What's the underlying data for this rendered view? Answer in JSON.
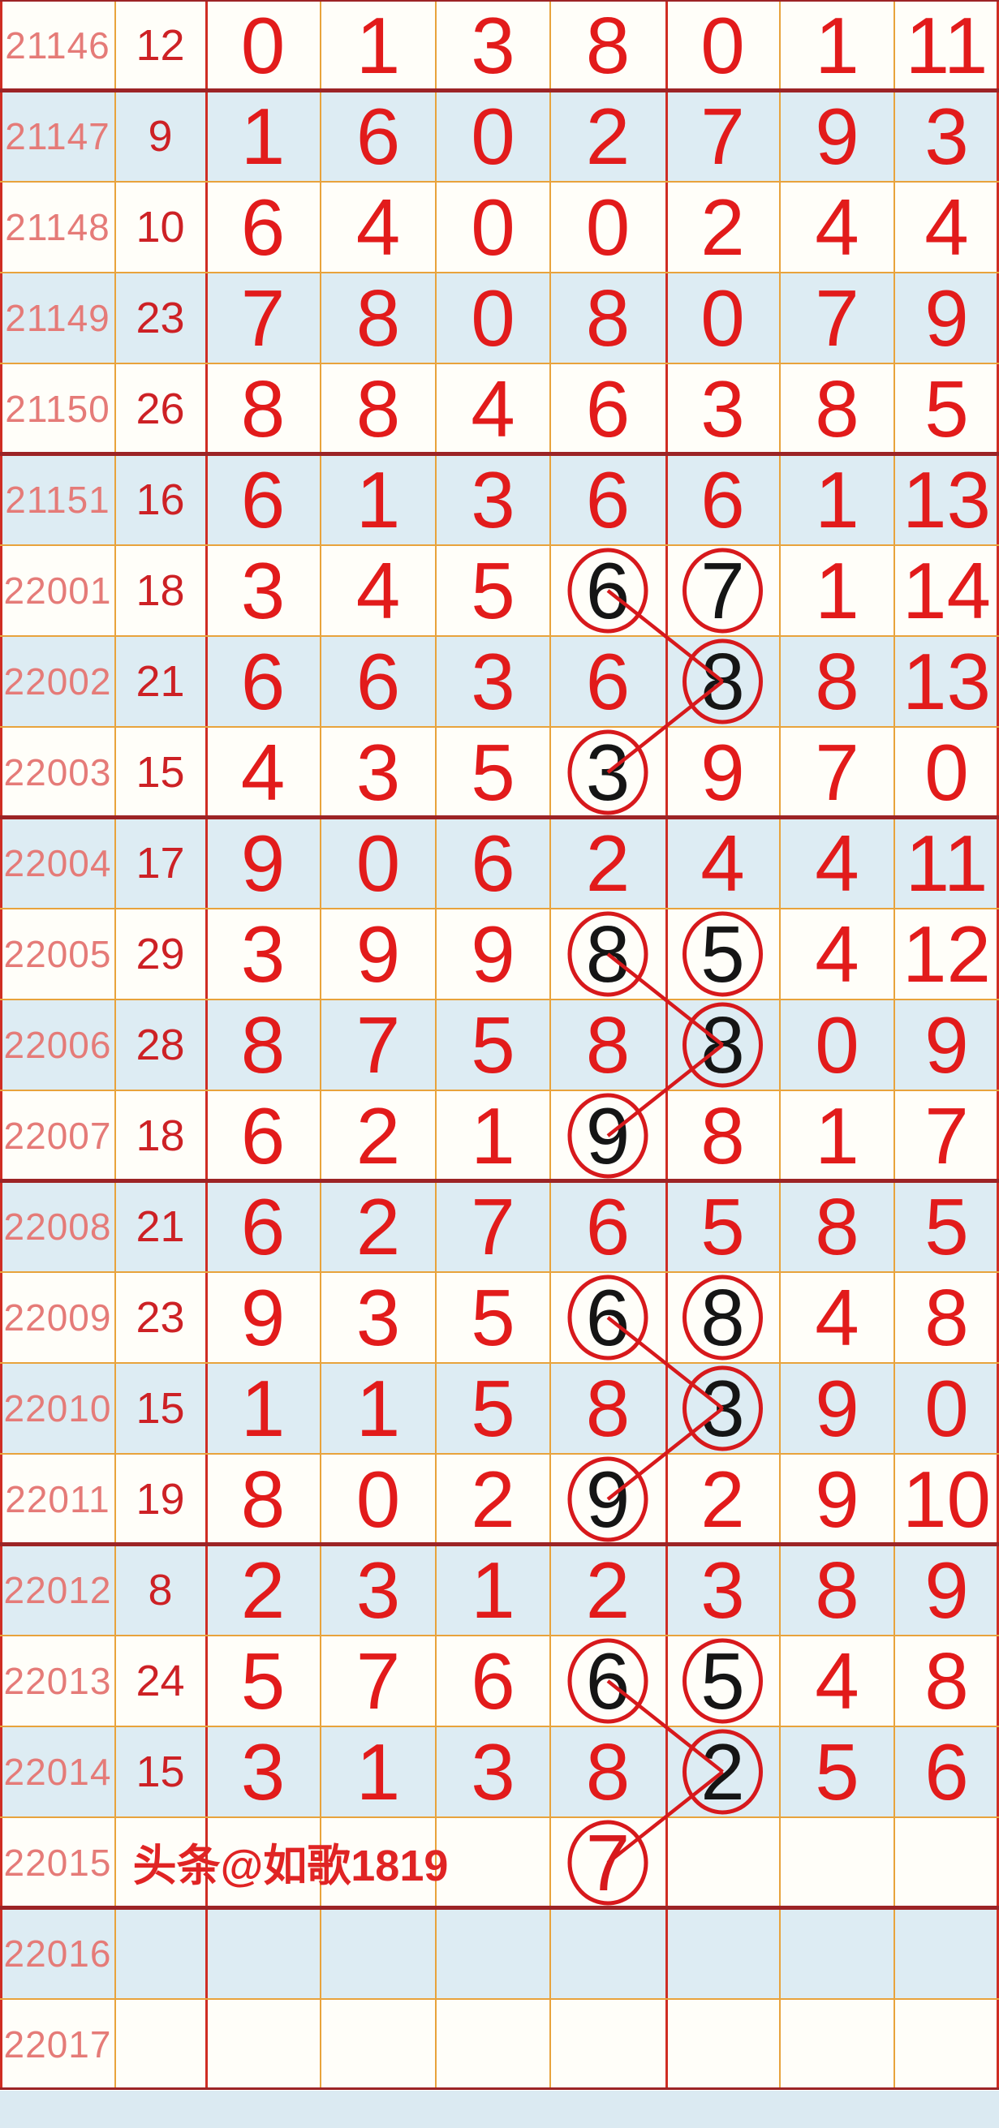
{
  "watermark": "头条@如歌1819",
  "colors": {
    "digit_red": "#e21b1b",
    "period_red": "#e57b78",
    "sum_red": "#cd2125",
    "circled_black": "#151515",
    "circle_stroke": "#d7191c",
    "row_white": "#fffef9",
    "row_blue": "#ddecf3",
    "grid_orange": "#e8a33c",
    "grid_red": "#cf2d23",
    "group_line": "#9c2426",
    "bottom_strip": "#dbeaf2",
    "watermark_red": "#e02424"
  },
  "chart_data": {
    "type": "table",
    "description": "Lottery number trend table: period column, sum column, then 7 digit columns; selected digits circled in red with zigzag connector lines.",
    "rows": [
      {
        "period": "21146",
        "sum": "12",
        "digits": [
          "0",
          "1",
          "3",
          "8",
          "0",
          "1",
          "11"
        ],
        "bg": "white",
        "circled": []
      },
      {
        "period": "21147",
        "sum": "9",
        "digits": [
          "1",
          "6",
          "0",
          "2",
          "7",
          "9",
          "3"
        ],
        "bg": "blue",
        "circled": []
      },
      {
        "period": "21148",
        "sum": "10",
        "digits": [
          "6",
          "4",
          "0",
          "0",
          "2",
          "4",
          "4"
        ],
        "bg": "white",
        "circled": []
      },
      {
        "period": "21149",
        "sum": "23",
        "digits": [
          "7",
          "8",
          "0",
          "8",
          "0",
          "7",
          "9"
        ],
        "bg": "blue",
        "circled": []
      },
      {
        "period": "21150",
        "sum": "26",
        "digits": [
          "8",
          "8",
          "4",
          "6",
          "3",
          "8",
          "5"
        ],
        "bg": "white",
        "circled": []
      },
      {
        "period": "21151",
        "sum": "16",
        "digits": [
          "6",
          "1",
          "3",
          "6",
          "6",
          "1",
          "13"
        ],
        "bg": "blue",
        "circled": []
      },
      {
        "period": "22001",
        "sum": "18",
        "digits": [
          "3",
          "4",
          "5",
          "6",
          "7",
          "1",
          "14"
        ],
        "bg": "white",
        "circled": [
          {
            "col": 3,
            "color": "black"
          },
          {
            "col": 4,
            "color": "black"
          }
        ]
      },
      {
        "period": "22002",
        "sum": "21",
        "digits": [
          "6",
          "6",
          "3",
          "6",
          "8",
          "8",
          "13"
        ],
        "bg": "blue",
        "circled": [
          {
            "col": 4,
            "color": "black"
          }
        ]
      },
      {
        "period": "22003",
        "sum": "15",
        "digits": [
          "4",
          "3",
          "5",
          "3",
          "9",
          "7",
          "0"
        ],
        "bg": "white",
        "circled": [
          {
            "col": 3,
            "color": "black"
          }
        ]
      },
      {
        "period": "22004",
        "sum": "17",
        "digits": [
          "9",
          "0",
          "6",
          "2",
          "4",
          "4",
          "11"
        ],
        "bg": "blue",
        "circled": []
      },
      {
        "period": "22005",
        "sum": "29",
        "digits": [
          "3",
          "9",
          "9",
          "8",
          "5",
          "4",
          "12"
        ],
        "bg": "white",
        "circled": [
          {
            "col": 3,
            "color": "black"
          },
          {
            "col": 4,
            "color": "black"
          }
        ]
      },
      {
        "period": "22006",
        "sum": "28",
        "digits": [
          "8",
          "7",
          "5",
          "8",
          "8",
          "0",
          "9"
        ],
        "bg": "blue",
        "circled": [
          {
            "col": 4,
            "color": "black"
          }
        ]
      },
      {
        "period": "22007",
        "sum": "18",
        "digits": [
          "6",
          "2",
          "1",
          "9",
          "8",
          "1",
          "7"
        ],
        "bg": "white",
        "circled": [
          {
            "col": 3,
            "color": "black"
          }
        ]
      },
      {
        "period": "22008",
        "sum": "21",
        "digits": [
          "6",
          "2",
          "7",
          "6",
          "5",
          "8",
          "5"
        ],
        "bg": "blue",
        "circled": []
      },
      {
        "period": "22009",
        "sum": "23",
        "digits": [
          "9",
          "3",
          "5",
          "6",
          "8",
          "4",
          "8"
        ],
        "bg": "white",
        "circled": [
          {
            "col": 3,
            "color": "black"
          },
          {
            "col": 4,
            "color": "black"
          }
        ]
      },
      {
        "period": "22010",
        "sum": "15",
        "digits": [
          "1",
          "1",
          "5",
          "8",
          "3",
          "9",
          "0"
        ],
        "bg": "blue",
        "circled": [
          {
            "col": 4,
            "color": "black"
          }
        ]
      },
      {
        "period": "22011",
        "sum": "19",
        "digits": [
          "8",
          "0",
          "2",
          "9",
          "2",
          "9",
          "10"
        ],
        "bg": "white",
        "circled": [
          {
            "col": 3,
            "color": "black"
          }
        ]
      },
      {
        "period": "22012",
        "sum": "8",
        "digits": [
          "2",
          "3",
          "1",
          "2",
          "3",
          "8",
          "9"
        ],
        "bg": "blue",
        "circled": []
      },
      {
        "period": "22013",
        "sum": "24",
        "digits": [
          "5",
          "7",
          "6",
          "6",
          "5",
          "4",
          "8"
        ],
        "bg": "white",
        "circled": [
          {
            "col": 3,
            "color": "black"
          },
          {
            "col": 4,
            "color": "black"
          }
        ]
      },
      {
        "period": "22014",
        "sum": "15",
        "digits": [
          "3",
          "1",
          "3",
          "8",
          "2",
          "5",
          "6"
        ],
        "bg": "blue",
        "circled": [
          {
            "col": 4,
            "color": "black"
          }
        ]
      },
      {
        "period": "22015",
        "sum": "",
        "digits": [
          "",
          "",
          "",
          "7",
          "",
          "",
          ""
        ],
        "bg": "white",
        "circled": [
          {
            "col": 3,
            "color": "red"
          }
        ],
        "watermark": true
      },
      {
        "period": "22016",
        "sum": "",
        "digits": [
          "",
          "",
          "",
          "",
          "",
          "",
          ""
        ],
        "bg": "blue",
        "circled": []
      },
      {
        "period": "22017",
        "sum": "",
        "digits": [
          "",
          "",
          "",
          "",
          "",
          "",
          ""
        ],
        "bg": "white",
        "circled": []
      }
    ],
    "zigzag_polylines": [
      [
        [
          "22001",
          3
        ],
        [
          "22002",
          4
        ],
        [
          "22003",
          3
        ]
      ],
      [
        [
          "22005",
          3
        ],
        [
          "22006",
          4
        ],
        [
          "22007",
          3
        ]
      ],
      [
        [
          "22009",
          3
        ],
        [
          "22010",
          4
        ],
        [
          "22011",
          3
        ]
      ],
      [
        [
          "22013",
          3
        ],
        [
          "22014",
          4
        ],
        [
          "22015",
          3
        ]
      ]
    ],
    "layout_hints": {
      "thick_separator_below_periods": [
        "21146",
        "21150",
        "22003",
        "22007",
        "22011",
        "22015",
        "22017"
      ],
      "red_vertical_lines_x": [
        0,
        253,
        820,
        1228
      ],
      "orange_vertical_lines_x": [
        142,
        395,
        537,
        678,
        961,
        1102
      ],
      "grid": "on",
      "legend": "none",
      "title": ""
    }
  }
}
